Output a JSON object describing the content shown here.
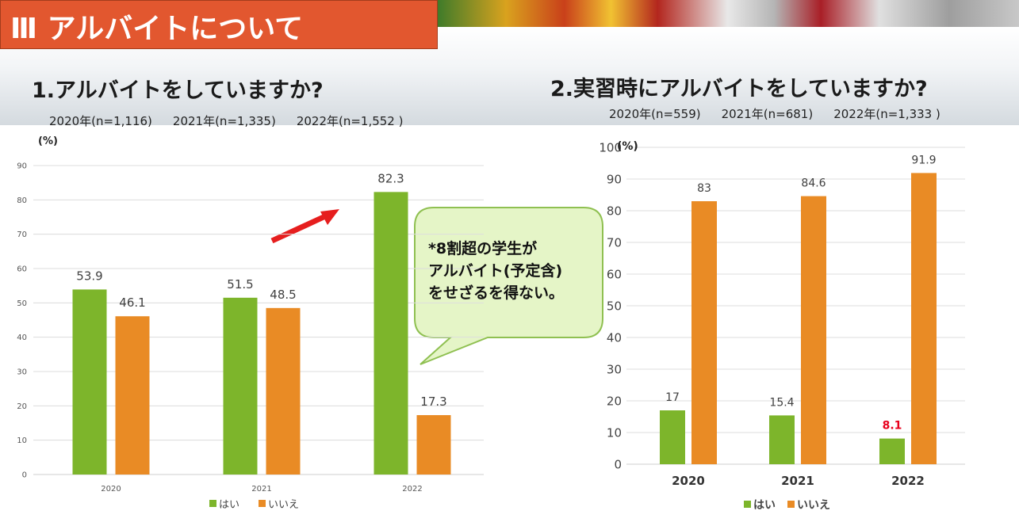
{
  "header": {
    "section_title": "Ⅲ アルバイトについて"
  },
  "q1": {
    "title": "1.アルバイトをしていますか?",
    "n": [
      "2020年(n=1,116)",
      "2021年(n=1,335)",
      "2022年(n=1,552 )"
    ]
  },
  "q2": {
    "title": "2.実習時にアルバイトをしていますか?",
    "n": [
      "2020年(n=559)",
      "2021年(n=681)",
      "2022年(n=1,333 )"
    ]
  },
  "callout": {
    "lines": [
      "*8割超の学生が",
      "アルバイト(予定含)",
      "をせざるを得ない。"
    ]
  },
  "colors": {
    "hai": "#7db52b",
    "iie": "#e98b25",
    "highlight": "#e8001c",
    "arrow": "#e61e1e",
    "bubble_fill": "#e5f5c7",
    "bubble_stroke": "#8fc051"
  },
  "chart_data": [
    {
      "type": "bar",
      "ylabel": "(%)",
      "categories": [
        "2020",
        "2021",
        "2022"
      ],
      "series": [
        {
          "name": "はい",
          "values": [
            53.9,
            51.5,
            82.3
          ]
        },
        {
          "name": "いいえ",
          "values": [
            46.1,
            48.5,
            17.3
          ]
        }
      ],
      "ylim": [
        0,
        90
      ],
      "yticks": [
        0,
        10,
        20,
        30,
        40,
        50,
        60,
        70,
        80,
        90
      ],
      "grid": true,
      "legend": "bottom"
    },
    {
      "type": "bar",
      "ylabel": "(%)",
      "categories": [
        "2020",
        "2021",
        "2022"
      ],
      "series": [
        {
          "name": "はい",
          "values": [
            17,
            15.4,
            8.1
          ]
        },
        {
          "name": "いいえ",
          "values": [
            83,
            84.6,
            91.9
          ]
        }
      ],
      "ylim": [
        0,
        100
      ],
      "yticks": [
        0,
        10,
        20,
        30,
        40,
        50,
        60,
        70,
        80,
        90,
        100
      ],
      "grid": true,
      "legend": "bottom"
    }
  ]
}
